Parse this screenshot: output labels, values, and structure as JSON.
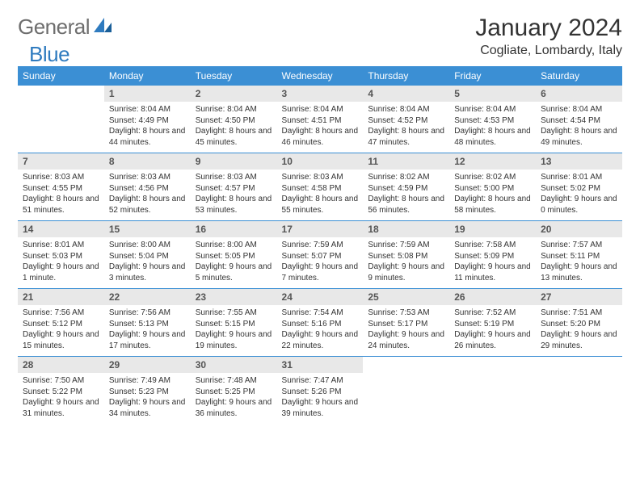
{
  "logo": {
    "general": "General",
    "blue": "Blue"
  },
  "title": "January 2024",
  "location": "Cogliate, Lombardy, Italy",
  "colors": {
    "header_bg": "#3b8fd4",
    "header_text": "#ffffff",
    "daynum_bg": "#e8e8e8",
    "body_text": "#333333",
    "logo_gray": "#6e6e6e",
    "logo_blue": "#2f7bbf",
    "week_border": "#3b8fd4"
  },
  "day_headers": [
    "Sunday",
    "Monday",
    "Tuesday",
    "Wednesday",
    "Thursday",
    "Friday",
    "Saturday"
  ],
  "weeks": [
    [
      {
        "n": "",
        "sr": "",
        "ss": "",
        "dl": ""
      },
      {
        "n": "1",
        "sr": "Sunrise: 8:04 AM",
        "ss": "Sunset: 4:49 PM",
        "dl": "Daylight: 8 hours and 44 minutes."
      },
      {
        "n": "2",
        "sr": "Sunrise: 8:04 AM",
        "ss": "Sunset: 4:50 PM",
        "dl": "Daylight: 8 hours and 45 minutes."
      },
      {
        "n": "3",
        "sr": "Sunrise: 8:04 AM",
        "ss": "Sunset: 4:51 PM",
        "dl": "Daylight: 8 hours and 46 minutes."
      },
      {
        "n": "4",
        "sr": "Sunrise: 8:04 AM",
        "ss": "Sunset: 4:52 PM",
        "dl": "Daylight: 8 hours and 47 minutes."
      },
      {
        "n": "5",
        "sr": "Sunrise: 8:04 AM",
        "ss": "Sunset: 4:53 PM",
        "dl": "Daylight: 8 hours and 48 minutes."
      },
      {
        "n": "6",
        "sr": "Sunrise: 8:04 AM",
        "ss": "Sunset: 4:54 PM",
        "dl": "Daylight: 8 hours and 49 minutes."
      }
    ],
    [
      {
        "n": "7",
        "sr": "Sunrise: 8:03 AM",
        "ss": "Sunset: 4:55 PM",
        "dl": "Daylight: 8 hours and 51 minutes."
      },
      {
        "n": "8",
        "sr": "Sunrise: 8:03 AM",
        "ss": "Sunset: 4:56 PM",
        "dl": "Daylight: 8 hours and 52 minutes."
      },
      {
        "n": "9",
        "sr": "Sunrise: 8:03 AM",
        "ss": "Sunset: 4:57 PM",
        "dl": "Daylight: 8 hours and 53 minutes."
      },
      {
        "n": "10",
        "sr": "Sunrise: 8:03 AM",
        "ss": "Sunset: 4:58 PM",
        "dl": "Daylight: 8 hours and 55 minutes."
      },
      {
        "n": "11",
        "sr": "Sunrise: 8:02 AM",
        "ss": "Sunset: 4:59 PM",
        "dl": "Daylight: 8 hours and 56 minutes."
      },
      {
        "n": "12",
        "sr": "Sunrise: 8:02 AM",
        "ss": "Sunset: 5:00 PM",
        "dl": "Daylight: 8 hours and 58 minutes."
      },
      {
        "n": "13",
        "sr": "Sunrise: 8:01 AM",
        "ss": "Sunset: 5:02 PM",
        "dl": "Daylight: 9 hours and 0 minutes."
      }
    ],
    [
      {
        "n": "14",
        "sr": "Sunrise: 8:01 AM",
        "ss": "Sunset: 5:03 PM",
        "dl": "Daylight: 9 hours and 1 minute."
      },
      {
        "n": "15",
        "sr": "Sunrise: 8:00 AM",
        "ss": "Sunset: 5:04 PM",
        "dl": "Daylight: 9 hours and 3 minutes."
      },
      {
        "n": "16",
        "sr": "Sunrise: 8:00 AM",
        "ss": "Sunset: 5:05 PM",
        "dl": "Daylight: 9 hours and 5 minutes."
      },
      {
        "n": "17",
        "sr": "Sunrise: 7:59 AM",
        "ss": "Sunset: 5:07 PM",
        "dl": "Daylight: 9 hours and 7 minutes."
      },
      {
        "n": "18",
        "sr": "Sunrise: 7:59 AM",
        "ss": "Sunset: 5:08 PM",
        "dl": "Daylight: 9 hours and 9 minutes."
      },
      {
        "n": "19",
        "sr": "Sunrise: 7:58 AM",
        "ss": "Sunset: 5:09 PM",
        "dl": "Daylight: 9 hours and 11 minutes."
      },
      {
        "n": "20",
        "sr": "Sunrise: 7:57 AM",
        "ss": "Sunset: 5:11 PM",
        "dl": "Daylight: 9 hours and 13 minutes."
      }
    ],
    [
      {
        "n": "21",
        "sr": "Sunrise: 7:56 AM",
        "ss": "Sunset: 5:12 PM",
        "dl": "Daylight: 9 hours and 15 minutes."
      },
      {
        "n": "22",
        "sr": "Sunrise: 7:56 AM",
        "ss": "Sunset: 5:13 PM",
        "dl": "Daylight: 9 hours and 17 minutes."
      },
      {
        "n": "23",
        "sr": "Sunrise: 7:55 AM",
        "ss": "Sunset: 5:15 PM",
        "dl": "Daylight: 9 hours and 19 minutes."
      },
      {
        "n": "24",
        "sr": "Sunrise: 7:54 AM",
        "ss": "Sunset: 5:16 PM",
        "dl": "Daylight: 9 hours and 22 minutes."
      },
      {
        "n": "25",
        "sr": "Sunrise: 7:53 AM",
        "ss": "Sunset: 5:17 PM",
        "dl": "Daylight: 9 hours and 24 minutes."
      },
      {
        "n": "26",
        "sr": "Sunrise: 7:52 AM",
        "ss": "Sunset: 5:19 PM",
        "dl": "Daylight: 9 hours and 26 minutes."
      },
      {
        "n": "27",
        "sr": "Sunrise: 7:51 AM",
        "ss": "Sunset: 5:20 PM",
        "dl": "Daylight: 9 hours and 29 minutes."
      }
    ],
    [
      {
        "n": "28",
        "sr": "Sunrise: 7:50 AM",
        "ss": "Sunset: 5:22 PM",
        "dl": "Daylight: 9 hours and 31 minutes."
      },
      {
        "n": "29",
        "sr": "Sunrise: 7:49 AM",
        "ss": "Sunset: 5:23 PM",
        "dl": "Daylight: 9 hours and 34 minutes."
      },
      {
        "n": "30",
        "sr": "Sunrise: 7:48 AM",
        "ss": "Sunset: 5:25 PM",
        "dl": "Daylight: 9 hours and 36 minutes."
      },
      {
        "n": "31",
        "sr": "Sunrise: 7:47 AM",
        "ss": "Sunset: 5:26 PM",
        "dl": "Daylight: 9 hours and 39 minutes."
      },
      {
        "n": "",
        "sr": "",
        "ss": "",
        "dl": ""
      },
      {
        "n": "",
        "sr": "",
        "ss": "",
        "dl": ""
      },
      {
        "n": "",
        "sr": "",
        "ss": "",
        "dl": ""
      }
    ]
  ]
}
